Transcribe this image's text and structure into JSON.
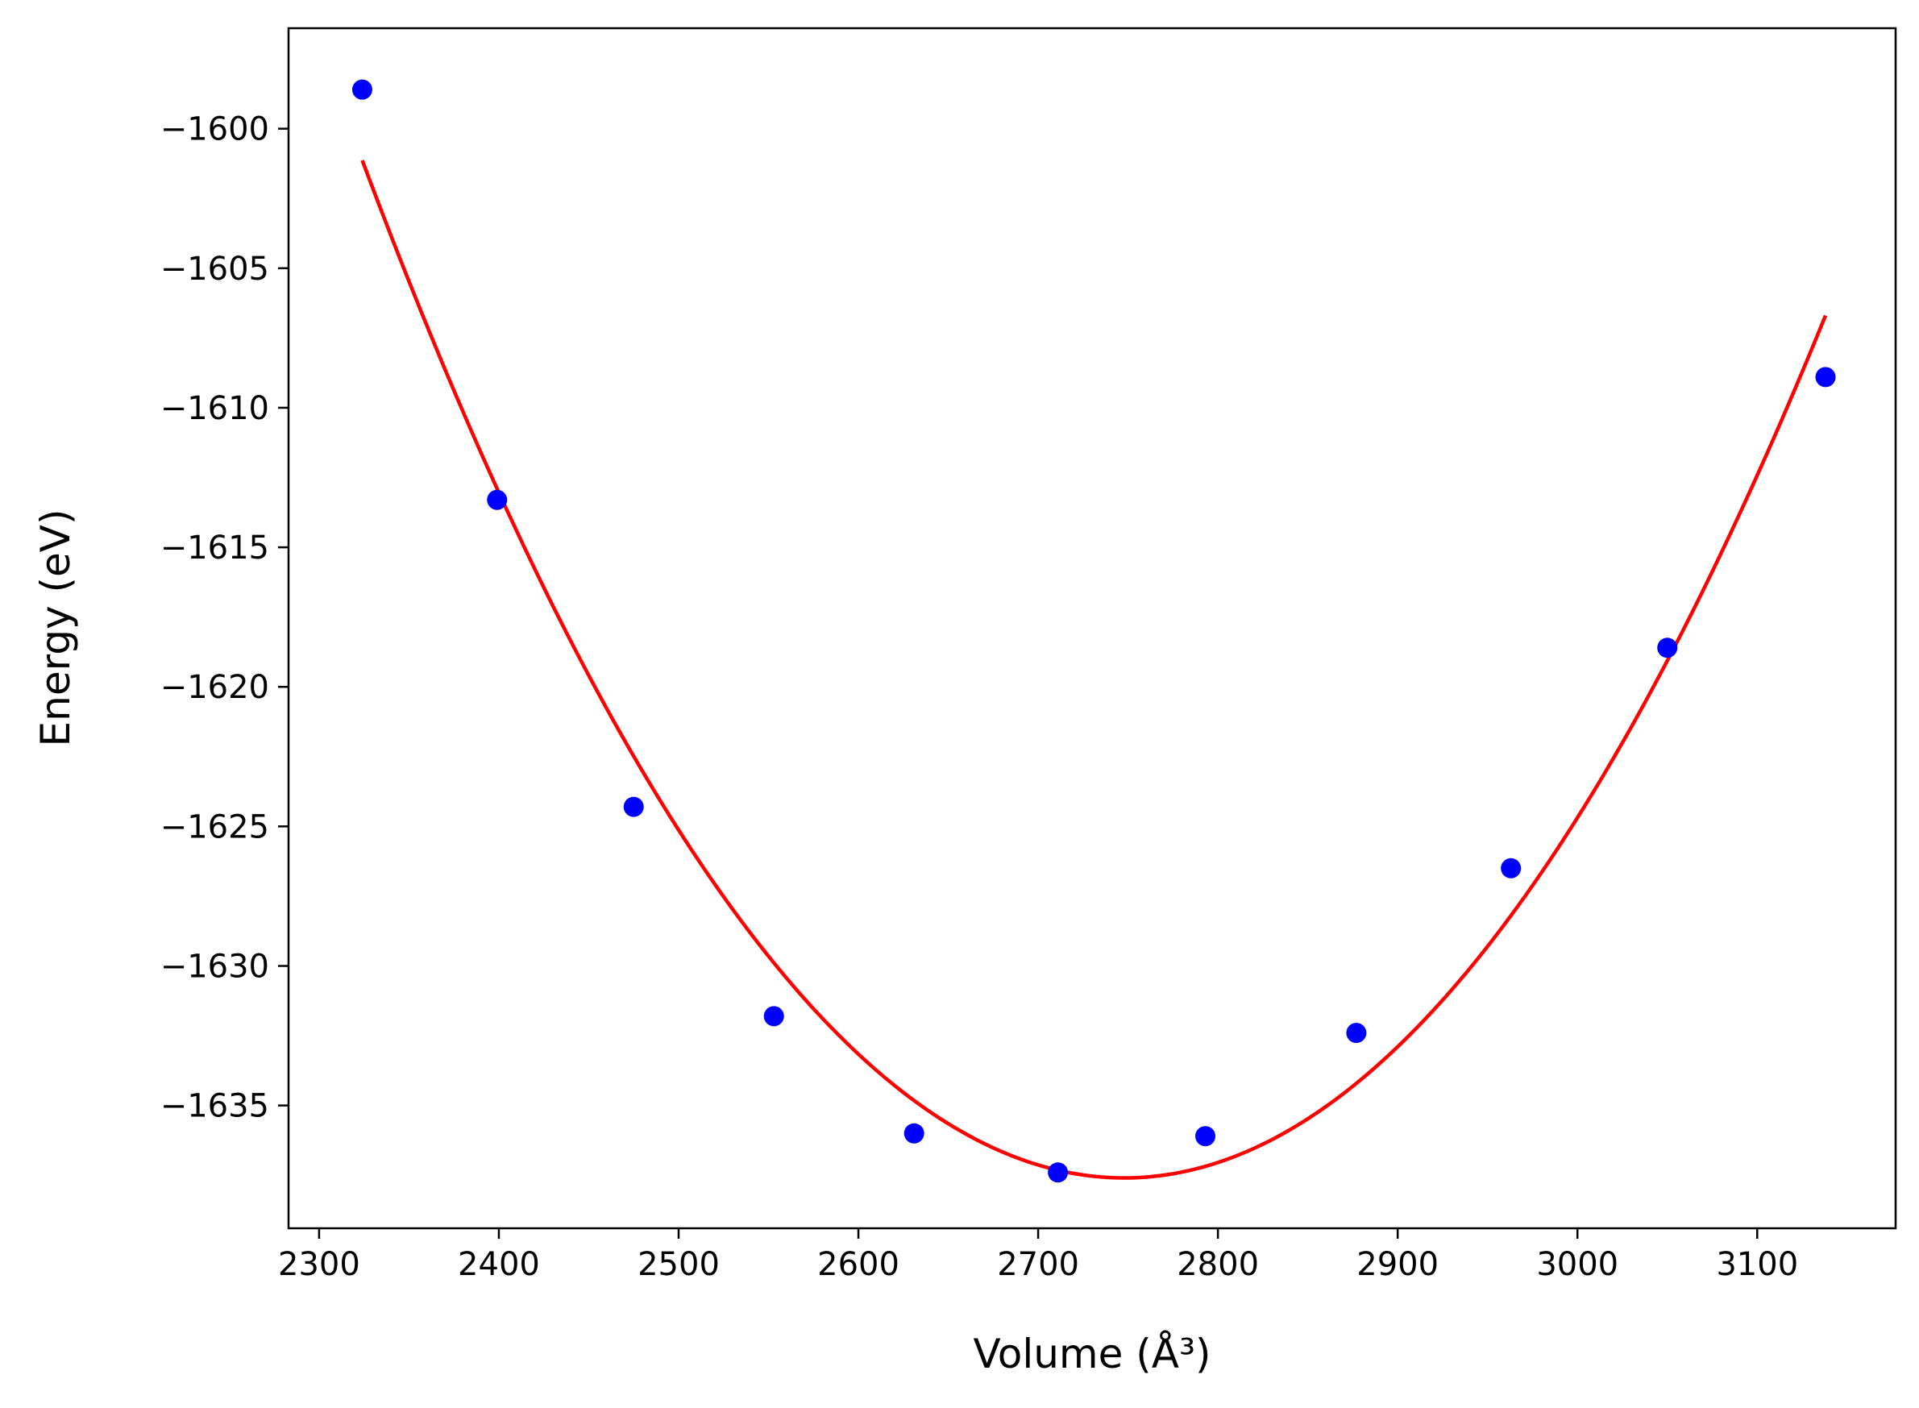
{
  "chart_data": {
    "type": "scatter",
    "xlabel": "Volume (Å³)",
    "ylabel": "Energy (eV)",
    "xlim": [
      2283,
      3177
    ],
    "ylim": [
      -1639.4,
      -1596.4
    ],
    "x_ticks": [
      2300,
      2400,
      2500,
      2600,
      2700,
      2800,
      2900,
      3000,
      3100
    ],
    "y_ticks": [
      -1600,
      -1605,
      -1610,
      -1615,
      -1620,
      -1625,
      -1630,
      -1635
    ],
    "x_tick_labels": [
      "2300",
      "2400",
      "2500",
      "2600",
      "2700",
      "2800",
      "2900",
      "3000",
      "3100"
    ],
    "y_tick_labels": [
      "−1600",
      "−1605",
      "−1610",
      "−1615",
      "−1620",
      "−1625",
      "−1630",
      "−1635"
    ],
    "grid": false,
    "series": [
      {
        "kind": "points",
        "color": "#0000ff",
        "x": [
          2324,
          2399,
          2475,
          2553,
          2631,
          2711,
          2793,
          2877,
          2963,
          3050,
          3138
        ],
        "y": [
          -1598.6,
          -1613.3,
          -1624.3,
          -1631.8,
          -1636.0,
          -1637.4,
          -1636.1,
          -1632.4,
          -1626.5,
          -1618.6,
          -1608.9
        ]
      },
      {
        "kind": "fit-line",
        "color": "#ff0000"
      }
    ]
  }
}
